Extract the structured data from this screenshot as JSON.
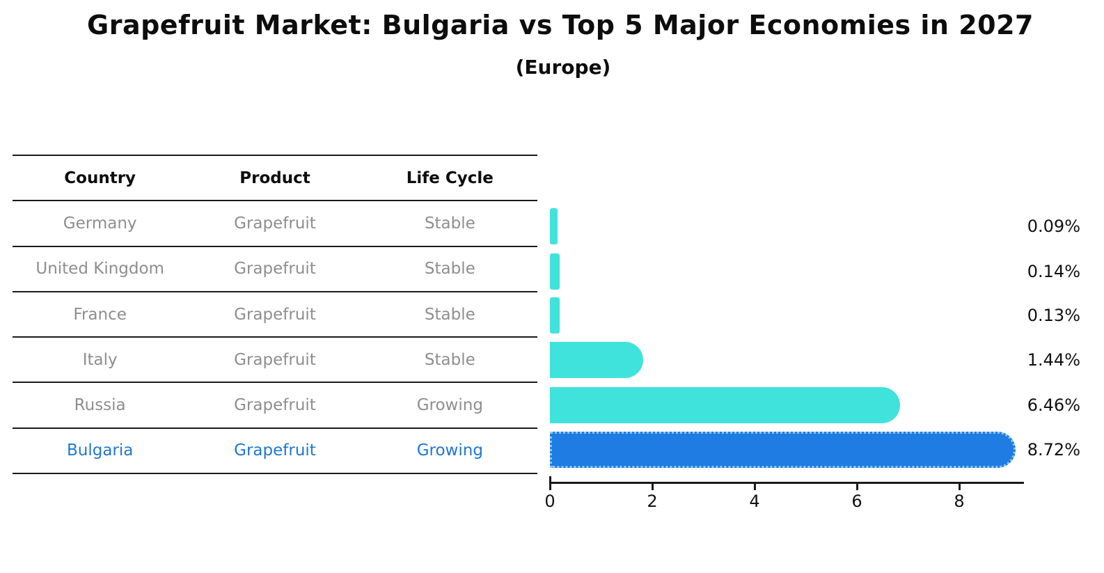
{
  "title": "Grapefruit Market: Bulgaria vs Top 5 Major Economies in 2027",
  "subtitle": "(Europe)",
  "table": {
    "headers": [
      "Country",
      "Product",
      "Life Cycle"
    ],
    "rows": [
      {
        "country": "Germany",
        "product": "Grapefruit",
        "life_cycle": "Stable",
        "highlight": false
      },
      {
        "country": "United Kingdom",
        "product": "Grapefruit",
        "life_cycle": "Stable",
        "highlight": false
      },
      {
        "country": "France",
        "product": "Grapefruit",
        "life_cycle": "Stable",
        "highlight": false
      },
      {
        "country": "Italy",
        "product": "Grapefruit",
        "life_cycle": "Stable",
        "highlight": false
      },
      {
        "country": "Russia",
        "product": "Grapefruit",
        "life_cycle": "Growing",
        "highlight": false
      },
      {
        "country": "Bulgaria",
        "product": "Grapefruit",
        "life_cycle": "Growing",
        "highlight": true
      }
    ]
  },
  "chart_data": {
    "type": "bar",
    "orientation": "horizontal",
    "title": "Grapefruit Market: Bulgaria vs Top 5 Major Economies in 2027",
    "subtitle": "(Europe)",
    "categories": [
      "Germany",
      "United Kingdom",
      "France",
      "Italy",
      "Russia",
      "Bulgaria"
    ],
    "values": [
      0.09,
      0.14,
      0.13,
      1.44,
      6.46,
      8.72
    ],
    "value_labels": [
      "0.09%",
      "0.14%",
      "0.13%",
      "1.44%",
      "6.46%",
      "8.72%"
    ],
    "x_ticks": [
      "0",
      "2",
      "4",
      "6",
      "8"
    ],
    "xlim": [
      0,
      9.25
    ],
    "grid": false,
    "legend": false,
    "highlight_index": 5
  },
  "colors": {
    "bar_cyan": "#40E3DB",
    "bar_blue": "#1E7CE2",
    "dotted_border": "#8FC7F2",
    "highlight_text": "#1F78D1",
    "table_text": "#8E8E8E",
    "line": "#1A1A1A",
    "label_text": "#111111"
  }
}
